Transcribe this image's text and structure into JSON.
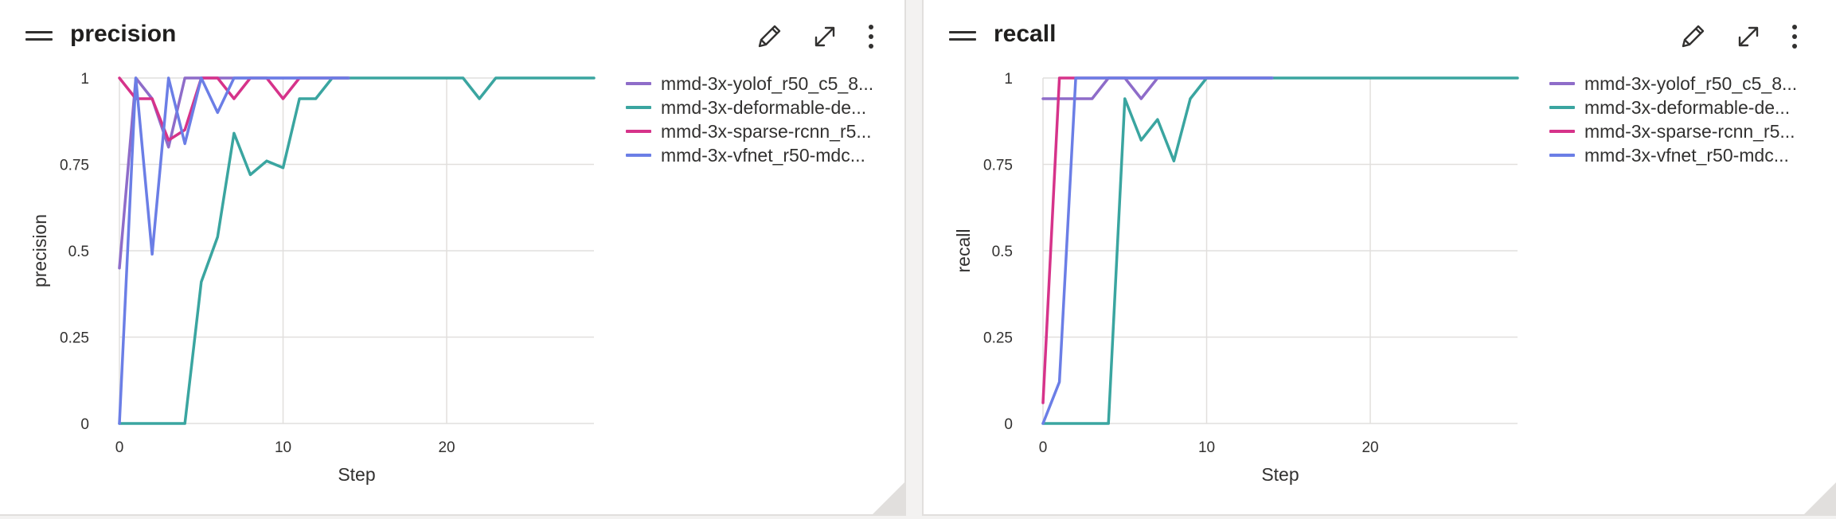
{
  "cards": [
    {
      "id": "precision",
      "title": "precision",
      "legend": [
        {
          "label": "mmd-3x-yolof_r50_c5_8...",
          "color": "#8e6cc9"
        },
        {
          "label": "mmd-3x-deformable-de...",
          "color": "#3aa5a0"
        },
        {
          "label": "mmd-3x-sparse-rcnn_r5...",
          "color": "#d6338a"
        },
        {
          "label": "mmd-3x-vfnet_r50-mdc...",
          "color": "#6b7ee6"
        }
      ]
    },
    {
      "id": "recall",
      "title": "recall",
      "legend": [
        {
          "label": "mmd-3x-yolof_r50_c5_8...",
          "color": "#8e6cc9"
        },
        {
          "label": "mmd-3x-deformable-de...",
          "color": "#3aa5a0"
        },
        {
          "label": "mmd-3x-sparse-rcnn_r5...",
          "color": "#d6338a"
        },
        {
          "label": "mmd-3x-vfnet_r50-mdc...",
          "color": "#6b7ee6"
        }
      ]
    }
  ],
  "icons": {
    "drag": "drag-handle-icon",
    "edit": "pencil-icon",
    "expand": "expand-icon",
    "more": "more-vertical-icon",
    "resize": "resize-corner-icon"
  },
  "chart_data": [
    {
      "type": "line",
      "title": "precision",
      "xlabel": "Step",
      "ylabel": "precision",
      "xlim": [
        0,
        29
      ],
      "ylim": [
        0,
        1
      ],
      "xticks": [
        0,
        10,
        20
      ],
      "yticks": [
        0,
        0.25,
        0.5,
        0.75,
        1
      ],
      "ytick_labels": [
        "0",
        "0.25",
        "0.5",
        "0.75",
        "1"
      ],
      "grid": true,
      "legend_position": "right",
      "series": [
        {
          "name": "mmd-3x-yolof_r50_c5_8...",
          "color": "#8e6cc9",
          "x": [
            0,
            1,
            2,
            3,
            4,
            5,
            6,
            7,
            8,
            9,
            10,
            11,
            12,
            13,
            14
          ],
          "y": [
            0.45,
            1,
            0.94,
            0.8,
            1,
            1,
            1,
            1,
            1,
            1,
            1,
            1,
            1,
            1,
            1
          ]
        },
        {
          "name": "mmd-3x-deformable-de...",
          "color": "#3aa5a0",
          "x": [
            0,
            1,
            2,
            3,
            4,
            5,
            6,
            7,
            8,
            9,
            10,
            11,
            12,
            13,
            14,
            15,
            16,
            17,
            18,
            19,
            20,
            21,
            22,
            23,
            24,
            25,
            26,
            27,
            28,
            29
          ],
          "y": [
            0,
            0,
            0,
            0,
            0,
            0.41,
            0.54,
            0.84,
            0.72,
            0.76,
            0.74,
            0.94,
            0.94,
            1,
            1,
            1,
            1,
            1,
            1,
            1,
            1,
            1,
            0.94,
            1,
            1,
            1,
            1,
            1,
            1,
            1
          ]
        },
        {
          "name": "mmd-3x-sparse-rcnn_r5...",
          "color": "#d6338a",
          "x": [
            0,
            1,
            2,
            3,
            4,
            5,
            6,
            7,
            8,
            9,
            10,
            11,
            12,
            13,
            14
          ],
          "y": [
            1,
            0.94,
            0.94,
            0.82,
            0.85,
            1,
            1,
            0.94,
            1,
            1,
            0.94,
            1,
            1,
            1,
            1
          ]
        },
        {
          "name": "mmd-3x-vfnet_r50-mdc...",
          "color": "#6b7ee6",
          "x": [
            0,
            1,
            2,
            3,
            4,
            5,
            6,
            7,
            8,
            9,
            10,
            11,
            12,
            13,
            14
          ],
          "y": [
            0,
            1,
            0.49,
            1,
            0.81,
            1,
            0.9,
            1,
            1,
            1,
            1,
            1,
            1,
            1,
            1
          ]
        }
      ]
    },
    {
      "type": "line",
      "title": "recall",
      "xlabel": "Step",
      "ylabel": "recall",
      "xlim": [
        0,
        29
      ],
      "ylim": [
        0,
        1
      ],
      "xticks": [
        0,
        10,
        20
      ],
      "yticks": [
        0,
        0.25,
        0.5,
        0.75,
        1
      ],
      "ytick_labels": [
        "0",
        "0.25",
        "0.5",
        "0.75",
        "1"
      ],
      "grid": true,
      "legend_position": "right",
      "series": [
        {
          "name": "mmd-3x-yolof_r50_c5_8...",
          "color": "#8e6cc9",
          "x": [
            0,
            1,
            2,
            3,
            4,
            5,
            6,
            7,
            8,
            9,
            10,
            11,
            12,
            13,
            14
          ],
          "y": [
            0.94,
            0.94,
            0.94,
            0.94,
            1,
            1,
            0.94,
            1,
            1,
            1,
            1,
            1,
            1,
            1,
            1
          ]
        },
        {
          "name": "mmd-3x-deformable-de...",
          "color": "#3aa5a0",
          "x": [
            0,
            1,
            2,
            3,
            4,
            5,
            6,
            7,
            8,
            9,
            10,
            11,
            12,
            13,
            14,
            15,
            16,
            17,
            18,
            19,
            20,
            21,
            22,
            23,
            24,
            25,
            26,
            27,
            28,
            29
          ],
          "y": [
            0,
            0,
            0,
            0,
            0,
            0.94,
            0.82,
            0.88,
            0.76,
            0.94,
            1,
            1,
            1,
            1,
            1,
            1,
            1,
            1,
            1,
            1,
            1,
            1,
            1,
            1,
            1,
            1,
            1,
            1,
            1,
            1
          ]
        },
        {
          "name": "mmd-3x-sparse-rcnn_r5...",
          "color": "#d6338a",
          "x": [
            0,
            1,
            2,
            3,
            4,
            5,
            6,
            7,
            8,
            9,
            10,
            11,
            12,
            13,
            14
          ],
          "y": [
            0.06,
            1,
            1,
            1,
            1,
            1,
            1,
            1,
            1,
            1,
            1,
            1,
            1,
            1,
            1
          ]
        },
        {
          "name": "mmd-3x-vfnet_r50-mdc...",
          "color": "#6b7ee6",
          "x": [
            0,
            1,
            2,
            3,
            4,
            5,
            6,
            7,
            8,
            9,
            10,
            11,
            12,
            13,
            14
          ],
          "y": [
            0,
            0.12,
            1,
            1,
            1,
            1,
            1,
            1,
            1,
            1,
            1,
            1,
            1,
            1,
            1
          ]
        }
      ]
    }
  ]
}
